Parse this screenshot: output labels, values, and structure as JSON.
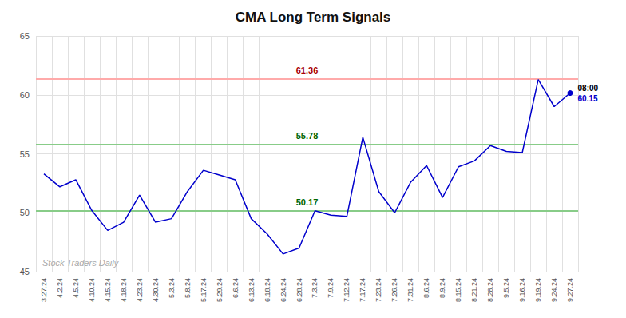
{
  "chart_data": {
    "type": "line",
    "title": "CMA Long Term Signals",
    "categories": [
      "3.27.24",
      "4.2.24",
      "4.5.24",
      "4.10.24",
      "4.15.24",
      "4.18.24",
      "4.23.24",
      "4.30.24",
      "5.3.24",
      "5.8.24",
      "5.17.24",
      "5.29.24",
      "6.6.24",
      "6.13.24",
      "6.18.24",
      "6.24.24",
      "6.28.24",
      "7.3.24",
      "7.9.24",
      "7.12.24",
      "7.17.24",
      "7.23.24",
      "7.26.24",
      "7.31.24",
      "8.6.24",
      "8.9.24",
      "8.15.24",
      "8.21.24",
      "8.28.24",
      "9.5.24",
      "9.16.24",
      "9.19.24",
      "9.24.24",
      "9.27.24"
    ],
    "values": [
      53.3,
      52.2,
      52.8,
      50.2,
      48.5,
      49.2,
      51.5,
      49.2,
      49.5,
      51.8,
      53.6,
      53.2,
      52.8,
      49.5,
      48.2,
      46.5,
      47.0,
      50.17,
      49.8,
      49.7,
      56.4,
      51.8,
      50.0,
      52.6,
      54.0,
      51.3,
      53.9,
      54.4,
      55.7,
      55.2,
      55.1,
      61.3,
      59.0,
      60.15
    ],
    "color": "#0000cc",
    "ylim": [
      45,
      65
    ],
    "yticks": [
      45,
      50,
      55,
      60,
      65
    ],
    "grid": true,
    "hlines": [
      {
        "value": 61.36,
        "label": "61.36",
        "color": "#ffaaaa",
        "label_color": "#aa0000"
      },
      {
        "value": 55.78,
        "label": "55.78",
        "color": "#88cc88",
        "label_color": "#006600"
      },
      {
        "value": 50.17,
        "label": "50.17",
        "color": "#88cc88",
        "label_color": "#006600"
      }
    ],
    "annotations": [
      {
        "text": "08:00",
        "color": "#000000"
      },
      {
        "text": "60.15",
        "color": "#0000cc"
      }
    ],
    "watermark": {
      "text": "Stock Traders Daily",
      "color": "#aaaaaa"
    }
  }
}
